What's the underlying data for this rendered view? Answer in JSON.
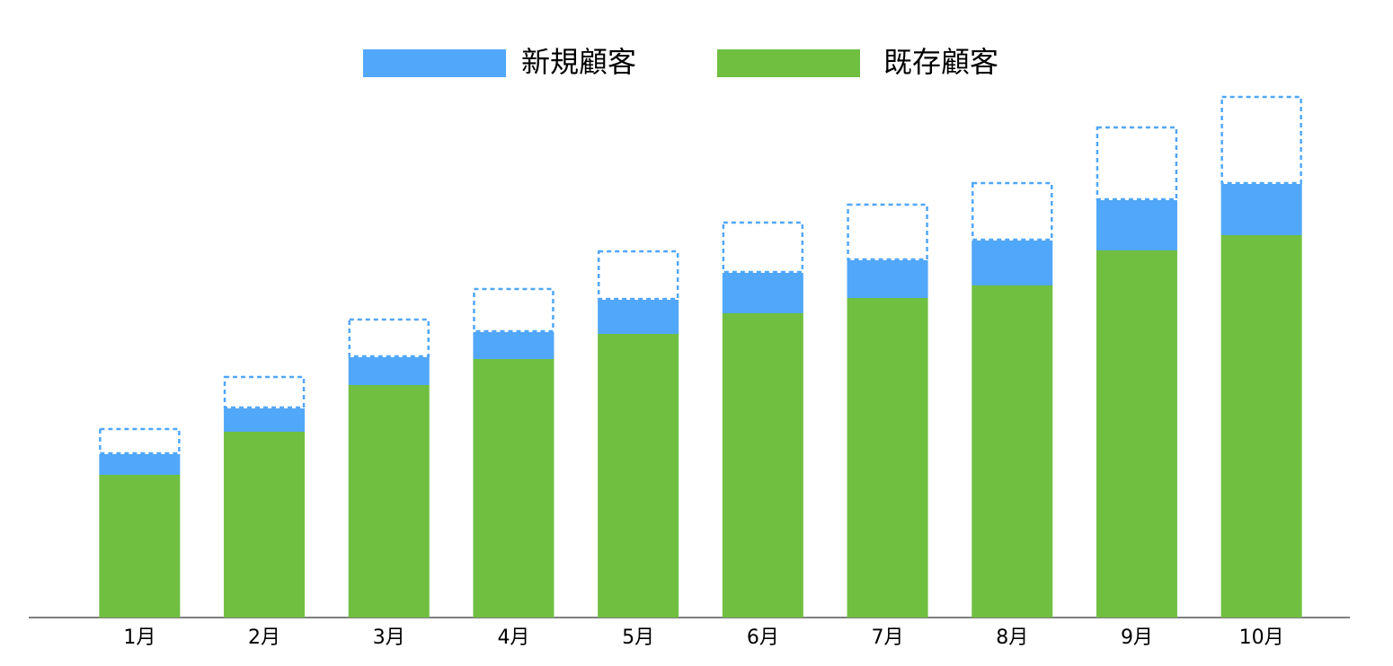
{
  "chart_data": {
    "type": "stacked_bar",
    "categories": [
      "1月",
      "2月",
      "3月",
      "4月",
      "5月",
      "6月",
      "7月",
      "8月",
      "9月",
      "10月"
    ],
    "series": [
      {
        "name": "既存顧客",
        "color": "#70bf41",
        "values": [
          159,
          207,
          259,
          288,
          316,
          339,
          356,
          370,
          409,
          426
        ]
      },
      {
        "name": "新規顧客",
        "color": "#51a7f9",
        "values": [
          23,
          26,
          31,
          30,
          38,
          45,
          42,
          50,
          56,
          57
        ]
      },
      {
        "color": "#51a7f9",
        "dashed": true,
        "values": [
          29,
          36,
          43,
          49,
          55,
          57,
          63,
          65,
          82,
          98
        ]
      }
    ],
    "ylim": [
      0,
      600
    ],
    "legend": "top"
  }
}
